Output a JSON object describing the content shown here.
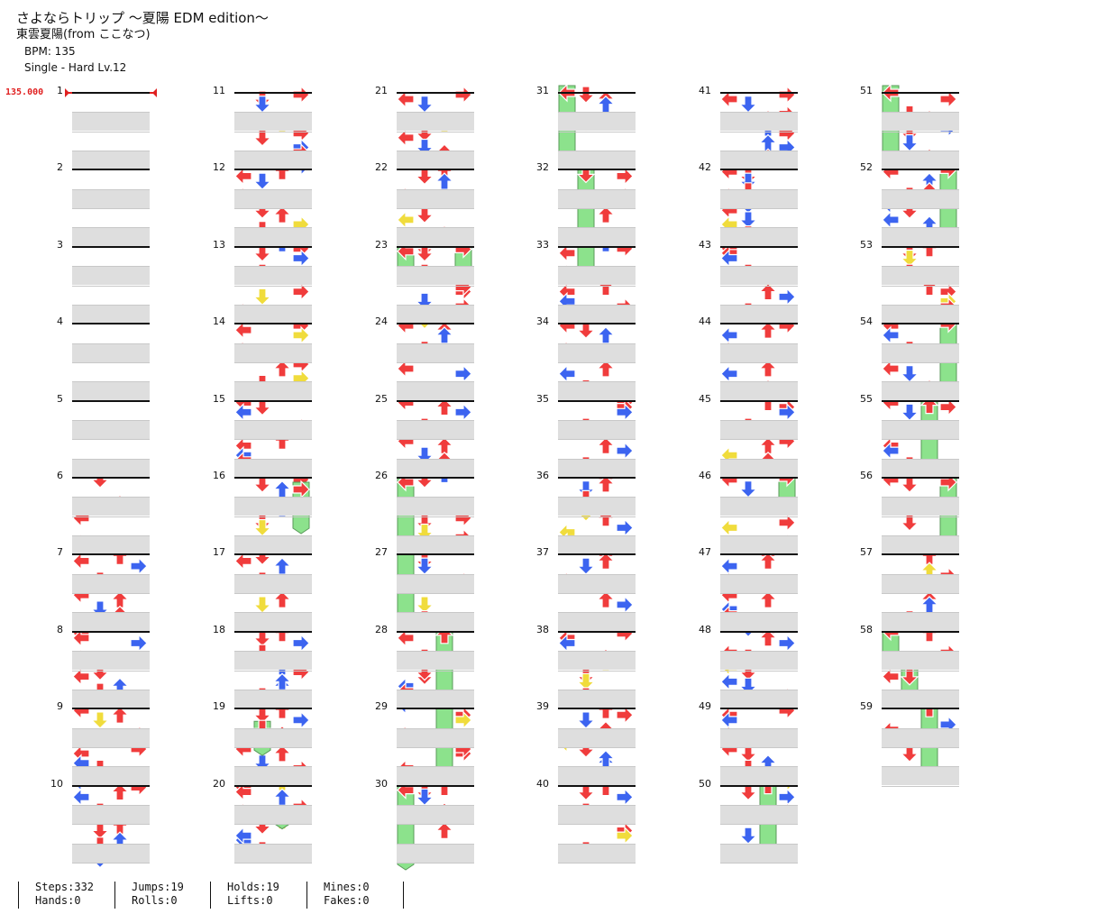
{
  "song": {
    "title": "さよならトリップ ～夏陽 EDM edition～",
    "artist": "東雲夏陽(from ここなつ)",
    "bpm_label": "BPM: 135",
    "difficulty": "Single - Hard  Lv.12"
  },
  "chart": {
    "bpm_change": "135.000",
    "measures": [
      "1",
      "2",
      "3",
      "4",
      "5",
      "6",
      "7",
      "8",
      "9",
      "10",
      "11",
      "12",
      "13",
      "14",
      "15",
      "16",
      "17",
      "18",
      "19",
      "20",
      "21",
      "22",
      "23",
      "24",
      "25",
      "26",
      "27",
      "28",
      "29",
      "30",
      "31",
      "32",
      "33",
      "34",
      "35",
      "36",
      "37",
      "38",
      "39",
      "40",
      "41",
      "42",
      "43",
      "44",
      "45",
      "46",
      "47",
      "48",
      "49",
      "50",
      "51",
      "52",
      "53",
      "54",
      "55",
      "56",
      "57",
      "58",
      "59"
    ],
    "arrow_colors": {
      "quarter": "#f03c3c",
      "eighth": "#3c64f0",
      "sixteenth": "#f0dc3c",
      "hold": "#8ce28c"
    },
    "icons": {
      "left": "left-arrow-icon",
      "down": "down-arrow-icon",
      "up": "up-arrow-icon",
      "right": "right-arrow-icon"
    }
  },
  "stats": {
    "steps": "Steps:332",
    "jumps": "Jumps:19",
    "holds": "Holds:19",
    "mines": "Mines:0",
    "hands": "Hands:0",
    "rolls": "Rolls:0",
    "lifts": "Lifts:0",
    "fakes": "Fakes:0"
  }
}
